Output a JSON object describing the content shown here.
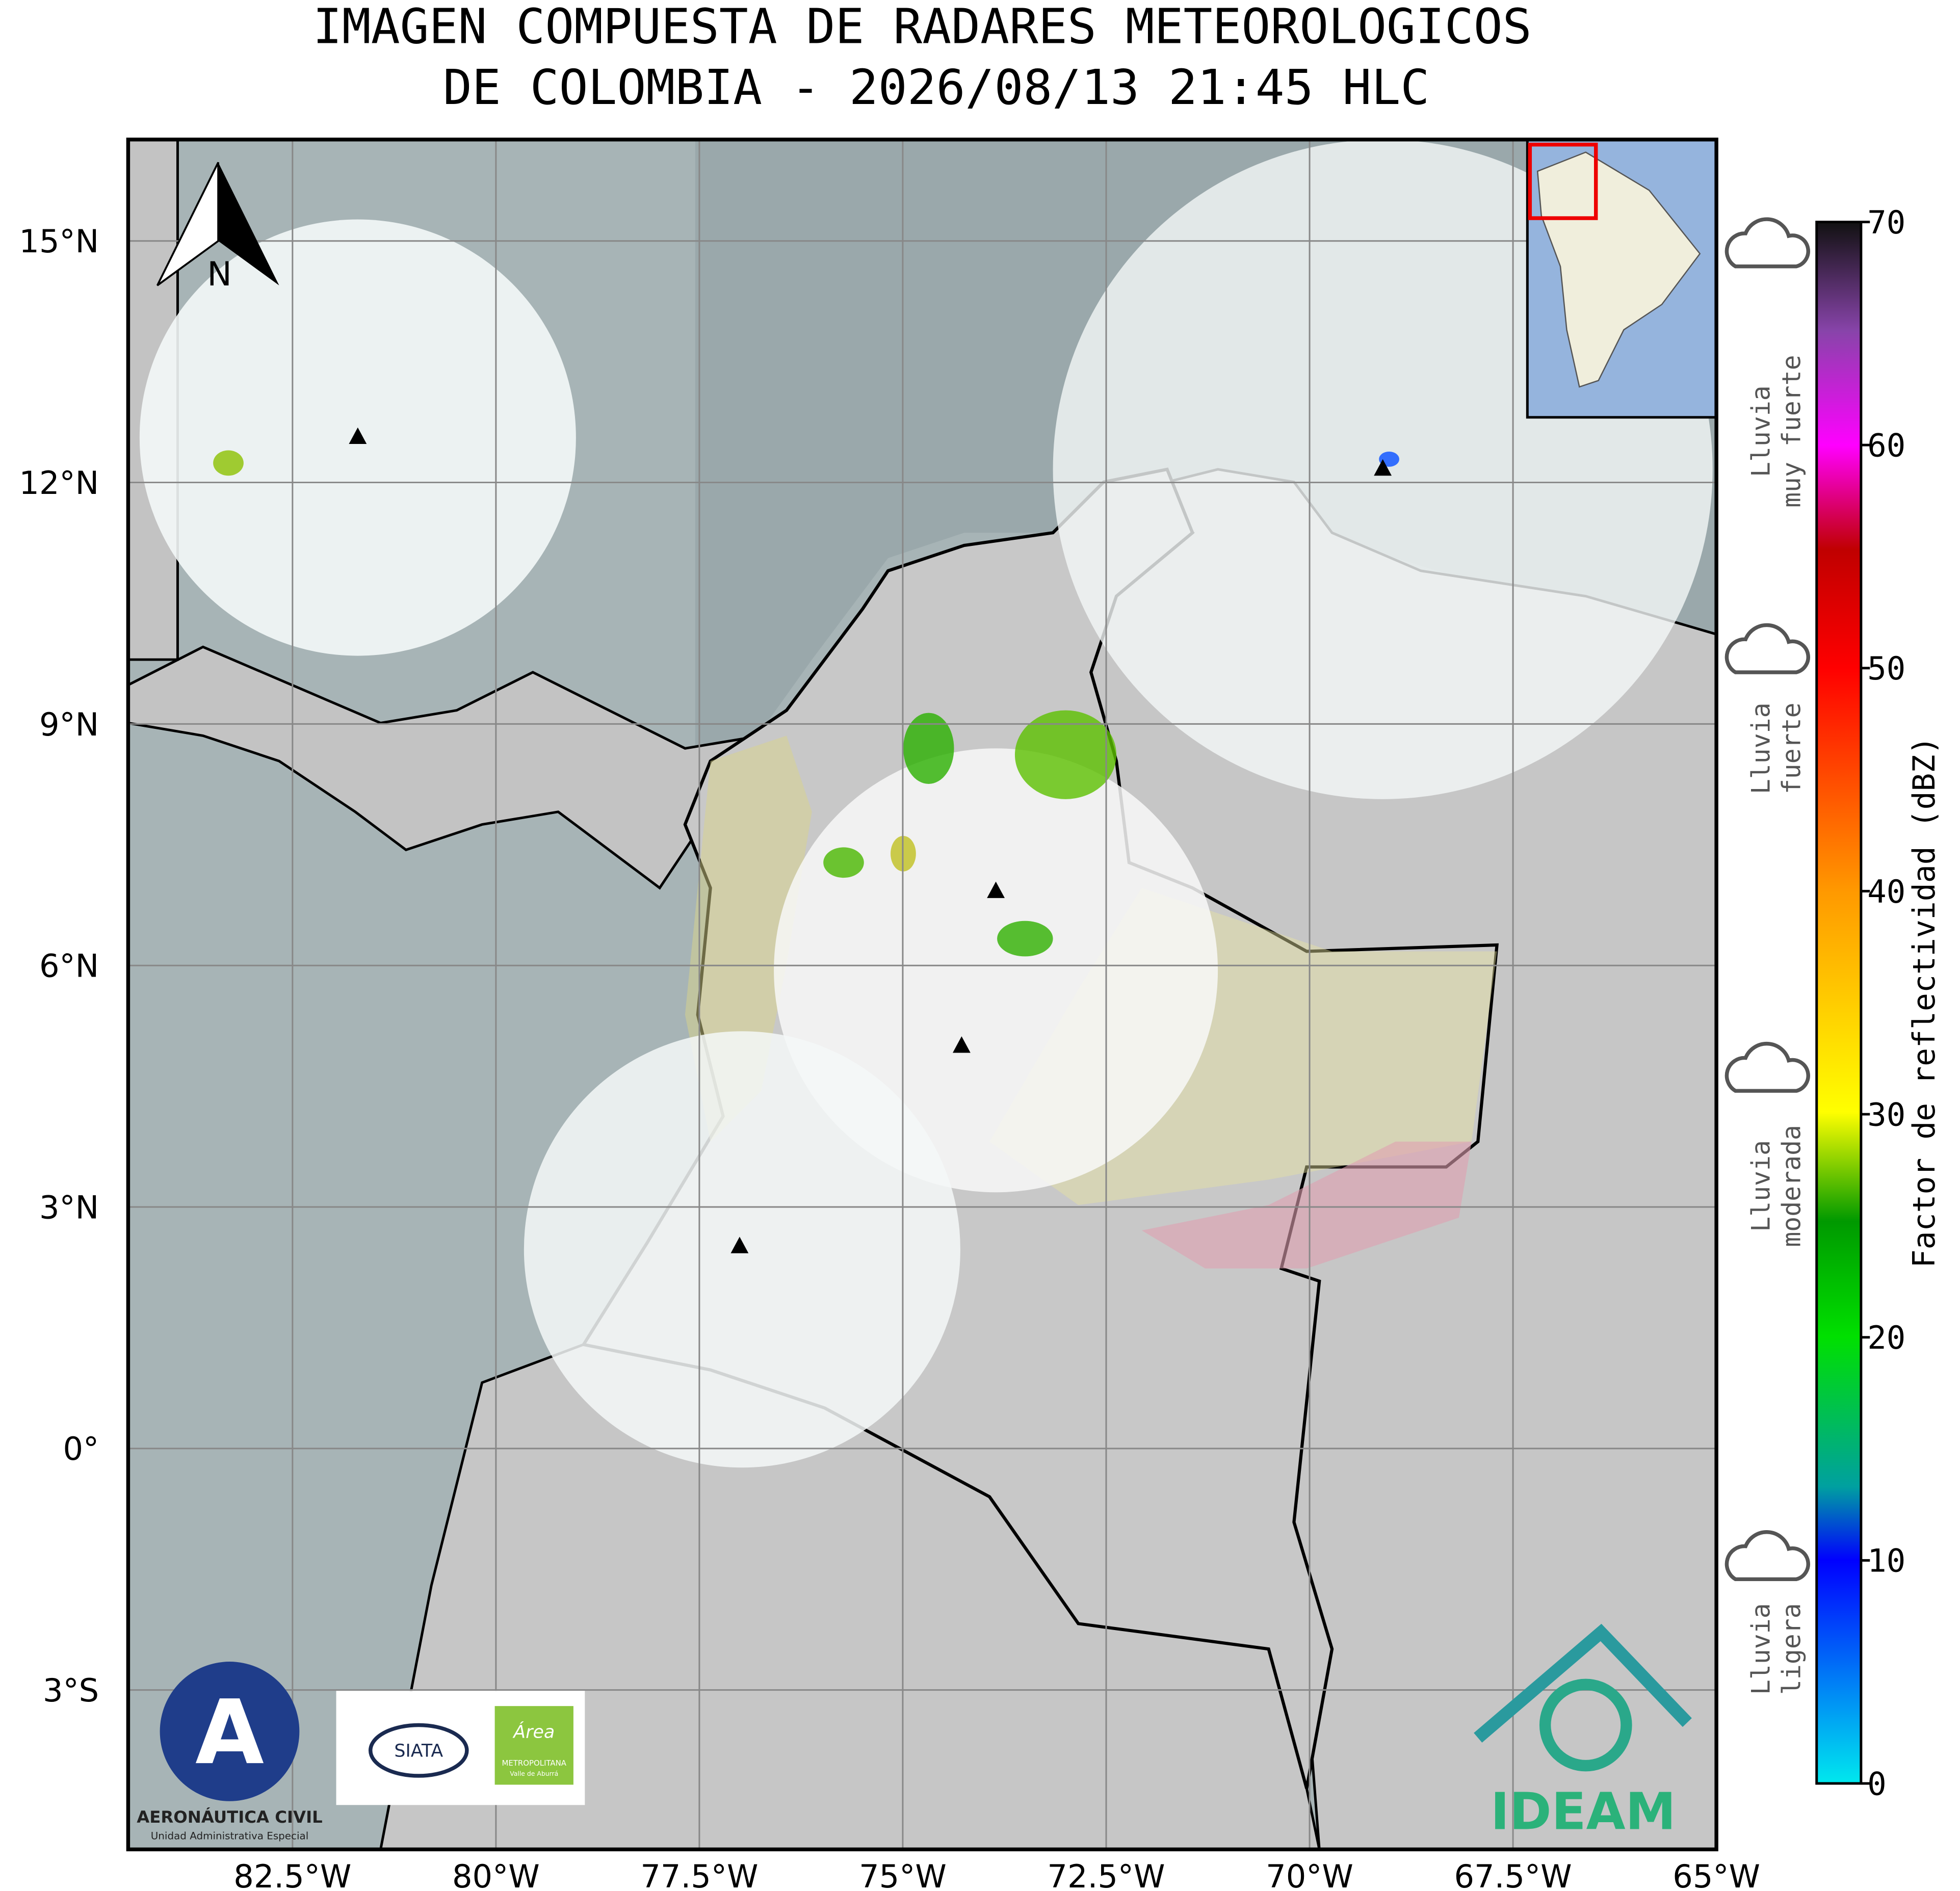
{
  "title": [
    "IMAGEN COMPUESTA DE RADARES METEOROLOGICOS",
    "DE COLOMBIA - 2026/08/13 21:45 HLC"
  ],
  "map": {
    "lonlim": [
      -84.52,
      -65
    ],
    "latlim": [
      -4.98,
      16.26
    ],
    "lon_ticks": [
      {
        "value": -82.5,
        "label": "82.5°W"
      },
      {
        "value": -80,
        "label": "80°W"
      },
      {
        "value": -77.5,
        "label": "77.5°W"
      },
      {
        "value": -75,
        "label": "75°W"
      },
      {
        "value": -72.5,
        "label": "72.5°W"
      },
      {
        "value": -70,
        "label": "70°W"
      },
      {
        "value": -67.5,
        "label": "67.5°W"
      },
      {
        "value": -65,
        "label": "65°W"
      }
    ],
    "lat_ticks": [
      {
        "value": 15,
        "label": "15°N"
      },
      {
        "value": 12,
        "label": "12°N"
      },
      {
        "value": 9,
        "label": "9°N"
      },
      {
        "value": 6,
        "label": "6°N"
      },
      {
        "value": 3,
        "label": "3°N"
      },
      {
        "value": 0,
        "label": "0°"
      },
      {
        "value": -3,
        "label": "3°S"
      }
    ],
    "north_label": "N"
  },
  "colorbar": {
    "label": "Factor de reflectividad (dBZ)",
    "lim": [
      0,
      70
    ],
    "ticks": [
      0,
      10,
      20,
      30,
      40,
      50,
      60,
      70
    ]
  },
  "rain_categories": [
    [
      "Lluvia",
      "muy fuerte"
    ],
    [
      "Lluvia",
      "fuerte"
    ],
    [
      "Lluvia",
      "moderada"
    ],
    [
      "Lluvia",
      "ligera"
    ]
  ],
  "logos": {
    "aerocivil": [
      "AERONÁUTICA CIVIL",
      "Unidad Administrativa Especial"
    ],
    "siata": "SIATA",
    "area": [
      "Área",
      "METROPOLITANA",
      "Valle de Aburrá"
    ],
    "ideam": "IDEAM"
  }
}
